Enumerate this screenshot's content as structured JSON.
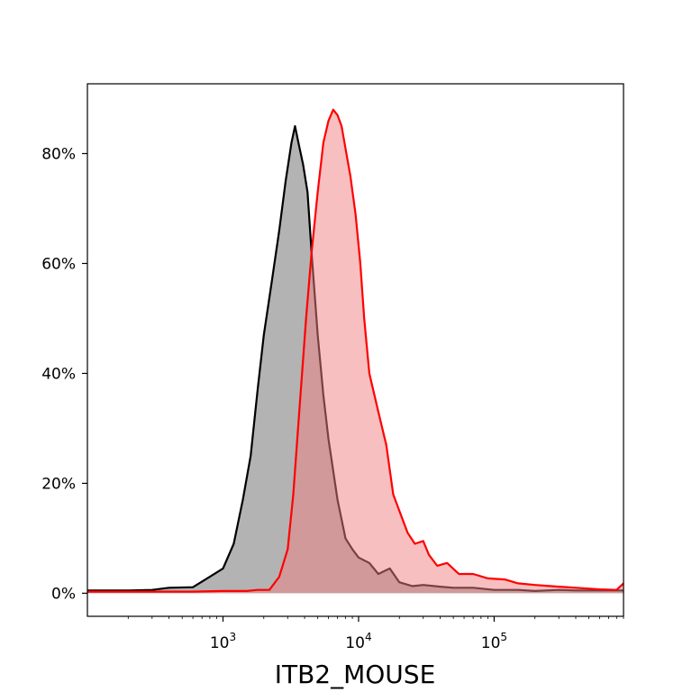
{
  "chart_data": {
    "type": "area",
    "title": "",
    "xlabel": "ITB2_MOUSE",
    "ylabel": "",
    "x_scale": "log",
    "xlim": [
      100,
      900000
    ],
    "ylim": [
      -4.2,
      92.7
    ],
    "grid": false,
    "legend": "none",
    "x_ticks": [
      {
        "value": 1000,
        "base": "10",
        "exp": "3"
      },
      {
        "value": 10000,
        "base": "10",
        "exp": "4"
      },
      {
        "value": 100000,
        "base": "10",
        "exp": "5"
      }
    ],
    "y_ticks": [
      {
        "value": 0,
        "label": "0%"
      },
      {
        "value": 20,
        "label": "20%"
      },
      {
        "value": 40,
        "label": "40%"
      },
      {
        "value": 60,
        "label": "60%"
      },
      {
        "value": 80,
        "label": "80%"
      }
    ],
    "series": [
      {
        "line_color": "#000000",
        "fill_color": "#808080",
        "fill_opacity": 0.6,
        "points": [
          [
            100,
            0.5
          ],
          [
            200,
            0.5
          ],
          [
            300,
            0.6
          ],
          [
            400,
            1.0
          ],
          [
            600,
            1.1
          ],
          [
            800,
            3.0
          ],
          [
            1000,
            4.5
          ],
          [
            1200,
            9.0
          ],
          [
            1400,
            17.0
          ],
          [
            1600,
            25.0
          ],
          [
            1800,
            37.0
          ],
          [
            2000,
            47.0
          ],
          [
            2300,
            57.0
          ],
          [
            2600,
            66.0
          ],
          [
            2900,
            75.0
          ],
          [
            3200,
            82.0
          ],
          [
            3400,
            85.0
          ],
          [
            3600,
            82.0
          ],
          [
            3900,
            78.0
          ],
          [
            4200,
            73.0
          ],
          [
            4500,
            62.0
          ],
          [
            5000,
            47.0
          ],
          [
            5500,
            36.0
          ],
          [
            6000,
            28.0
          ],
          [
            7000,
            17.0
          ],
          [
            8000,
            10.0
          ],
          [
            9000,
            8.0
          ],
          [
            10000,
            6.5
          ],
          [
            12000,
            5.5
          ],
          [
            14000,
            3.5
          ],
          [
            17000,
            4.5
          ],
          [
            20000,
            2.0
          ],
          [
            25000,
            1.3
          ],
          [
            30000,
            1.5
          ],
          [
            40000,
            1.2
          ],
          [
            50000,
            1.0
          ],
          [
            70000,
            1.0
          ],
          [
            100000,
            0.6
          ],
          [
            150000,
            0.6
          ],
          [
            200000,
            0.4
          ],
          [
            300000,
            0.6
          ],
          [
            400000,
            0.5
          ],
          [
            600000,
            0.5
          ],
          [
            900000,
            0.5
          ]
        ]
      },
      {
        "line_color": "#ff0000",
        "fill_color": "#f08080",
        "fill_opacity": 0.5,
        "points": [
          [
            100,
            0.3
          ],
          [
            300,
            0.3
          ],
          [
            600,
            0.3
          ],
          [
            1000,
            0.4
          ],
          [
            1500,
            0.4
          ],
          [
            1800,
            0.6
          ],
          [
            2200,
            0.6
          ],
          [
            2600,
            3.0
          ],
          [
            3000,
            8.0
          ],
          [
            3300,
            18.0
          ],
          [
            3700,
            35.0
          ],
          [
            4100,
            50.0
          ],
          [
            4500,
            62.0
          ],
          [
            5000,
            73.0
          ],
          [
            5500,
            82.0
          ],
          [
            6000,
            86.0
          ],
          [
            6500,
            88.0
          ],
          [
            7000,
            87.0
          ],
          [
            7500,
            85.0
          ],
          [
            8000,
            81.0
          ],
          [
            8700,
            76.0
          ],
          [
            9500,
            69.0
          ],
          [
            10300,
            60.0
          ],
          [
            11000,
            50.0
          ],
          [
            12000,
            40.0
          ],
          [
            14000,
            33.0
          ],
          [
            16000,
            27.0
          ],
          [
            18000,
            18.0
          ],
          [
            20000,
            15.0
          ],
          [
            23000,
            11.0
          ],
          [
            26000,
            9.0
          ],
          [
            30000,
            9.5
          ],
          [
            33000,
            7.0
          ],
          [
            38000,
            5.0
          ],
          [
            45000,
            5.5
          ],
          [
            55000,
            3.5
          ],
          [
            70000,
            3.5
          ],
          [
            90000,
            2.7
          ],
          [
            120000,
            2.5
          ],
          [
            150000,
            1.8
          ],
          [
            200000,
            1.5
          ],
          [
            300000,
            1.2
          ],
          [
            400000,
            1.0
          ],
          [
            600000,
            0.7
          ],
          [
            800000,
            0.6
          ],
          [
            900000,
            1.8
          ]
        ]
      }
    ]
  }
}
